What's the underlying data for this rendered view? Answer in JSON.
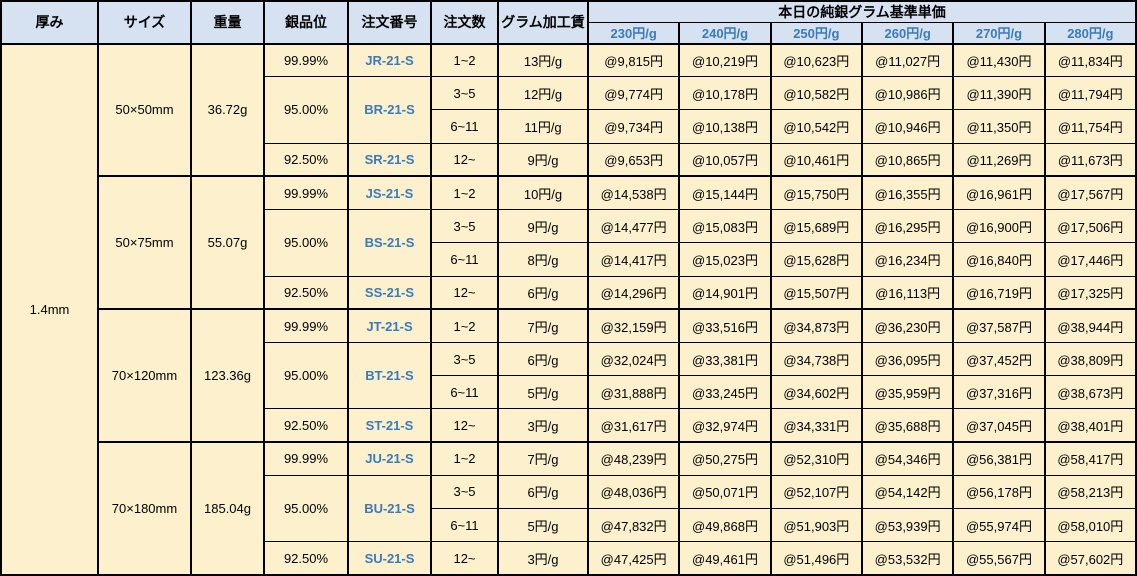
{
  "colors": {
    "header_bg": "#d6e2f1",
    "body_bg": "#fdf0cd",
    "accent_blue": "#3a7abd",
    "border_color": "#000000"
  },
  "header": {
    "columns": [
      "厚み",
      "サイズ",
      "重量",
      "銀品位",
      "注文番号",
      "注文数",
      "グラム加工賃"
    ],
    "price_group_title": "本日の純銀グラム基準単価",
    "price_columns": [
      "230円/g",
      "240円/g",
      "250円/g",
      "260円/g",
      "270円/g",
      "280円/g"
    ]
  },
  "thickness": "1.4mm",
  "blocks": [
    {
      "size": "50×50mm",
      "weight": "36.72g",
      "purities": [
        {
          "purity": "99.99%",
          "order_no": "JR-21-S",
          "rowspan": 1
        },
        {
          "purity": "95.00%",
          "order_no": "BR-21-S",
          "rowspan": 2
        },
        {
          "purity": "92.50%",
          "order_no": "SR-21-S",
          "rowspan": 1
        }
      ],
      "rows": [
        {
          "qty": "1~2",
          "fee": "13円/g",
          "prices": [
            "@9,815円",
            "@10,219円",
            "@10,623円",
            "@11,027円",
            "@11,430円",
            "@11,834円"
          ]
        },
        {
          "qty": "3~5",
          "fee": "12円/g",
          "prices": [
            "@9,774円",
            "@10,178円",
            "@10,582円",
            "@10,986円",
            "@11,390円",
            "@11,794円"
          ]
        },
        {
          "qty": "6~11",
          "fee": "11円/g",
          "prices": [
            "@9,734円",
            "@10,138円",
            "@10,542円",
            "@10,946円",
            "@11,350円",
            "@11,754円"
          ]
        },
        {
          "qty": "12~",
          "fee": "9円/g",
          "prices": [
            "@9,653円",
            "@10,057円",
            "@10,461円",
            "@10,865円",
            "@11,269円",
            "@11,673円"
          ]
        }
      ]
    },
    {
      "size": "50×75mm",
      "weight": "55.07g",
      "purities": [
        {
          "purity": "99.99%",
          "order_no": "JS-21-S",
          "rowspan": 1
        },
        {
          "purity": "95.00%",
          "order_no": "BS-21-S",
          "rowspan": 2
        },
        {
          "purity": "92.50%",
          "order_no": "SS-21-S",
          "rowspan": 1
        }
      ],
      "rows": [
        {
          "qty": "1~2",
          "fee": "10円/g",
          "prices": [
            "@14,538円",
            "@15,144円",
            "@15,750円",
            "@16,355円",
            "@16,961円",
            "@17,567円"
          ]
        },
        {
          "qty": "3~5",
          "fee": "9円/g",
          "prices": [
            "@14,477円",
            "@15,083円",
            "@15,689円",
            "@16,295円",
            "@16,900円",
            "@17,506円"
          ]
        },
        {
          "qty": "6~11",
          "fee": "8円/g",
          "prices": [
            "@14,417円",
            "@15,023円",
            "@15,628円",
            "@16,234円",
            "@16,840円",
            "@17,446円"
          ]
        },
        {
          "qty": "12~",
          "fee": "6円/g",
          "prices": [
            "@14,296円",
            "@14,901円",
            "@15,507円",
            "@16,113円",
            "@16,719円",
            "@17,325円"
          ]
        }
      ]
    },
    {
      "size": "70×120mm",
      "weight": "123.36g",
      "purities": [
        {
          "purity": "99.99%",
          "order_no": "JT-21-S",
          "rowspan": 1
        },
        {
          "purity": "95.00%",
          "order_no": "BT-21-S",
          "rowspan": 2
        },
        {
          "purity": "92.50%",
          "order_no": "ST-21-S",
          "rowspan": 1
        }
      ],
      "rows": [
        {
          "qty": "1~2",
          "fee": "7円/g",
          "prices": [
            "@32,159円",
            "@33,516円",
            "@34,873円",
            "@36,230円",
            "@37,587円",
            "@38,944円"
          ]
        },
        {
          "qty": "3~5",
          "fee": "6円/g",
          "prices": [
            "@32,024円",
            "@33,381円",
            "@34,738円",
            "@36,095円",
            "@37,452円",
            "@38,809円"
          ]
        },
        {
          "qty": "6~11",
          "fee": "5円/g",
          "prices": [
            "@31,888円",
            "@33,245円",
            "@34,602円",
            "@35,959円",
            "@37,316円",
            "@38,673円"
          ]
        },
        {
          "qty": "12~",
          "fee": "3円/g",
          "prices": [
            "@31,617円",
            "@32,974円",
            "@34,331円",
            "@35,688円",
            "@37,045円",
            "@38,401円"
          ]
        }
      ]
    },
    {
      "size": "70×180mm",
      "weight": "185.04g",
      "purities": [
        {
          "purity": "99.99%",
          "order_no": "JU-21-S",
          "rowspan": 1
        },
        {
          "purity": "95.00%",
          "order_no": "BU-21-S",
          "rowspan": 2
        },
        {
          "purity": "92.50%",
          "order_no": "SU-21-S",
          "rowspan": 1
        }
      ],
      "rows": [
        {
          "qty": "1~2",
          "fee": "7円/g",
          "prices": [
            "@48,239円",
            "@50,275円",
            "@52,310円",
            "@54,346円",
            "@56,381円",
            "@58,417円"
          ]
        },
        {
          "qty": "3~5",
          "fee": "6円/g",
          "prices": [
            "@48,036円",
            "@50,071円",
            "@52,107円",
            "@54,142円",
            "@56,178円",
            "@58,213円"
          ]
        },
        {
          "qty": "6~11",
          "fee": "5円/g",
          "prices": [
            "@47,832円",
            "@49,868円",
            "@51,903円",
            "@53,939円",
            "@55,974円",
            "@58,010円"
          ]
        },
        {
          "qty": "12~",
          "fee": "3円/g",
          "prices": [
            "@47,425円",
            "@49,461円",
            "@51,496円",
            "@53,532円",
            "@55,567円",
            "@57,602円"
          ]
        }
      ]
    }
  ]
}
